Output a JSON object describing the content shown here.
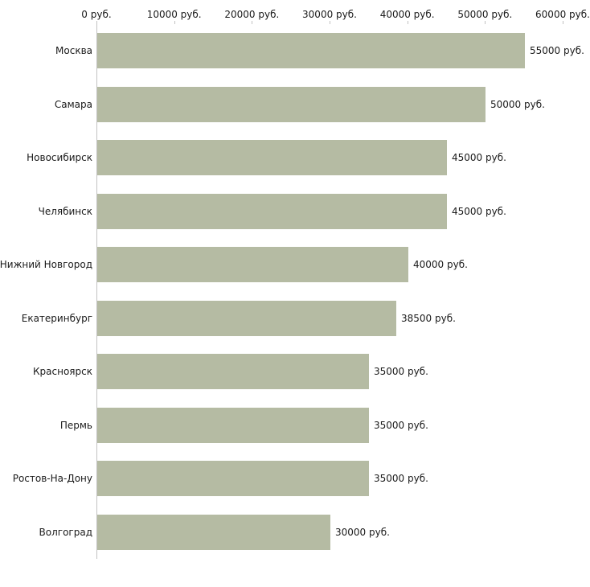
{
  "chart_data": {
    "type": "bar",
    "orientation": "horizontal",
    "title": "",
    "xlabel": "",
    "ylabel": "",
    "grid": false,
    "legend": false,
    "xlim": [
      0,
      60000
    ],
    "bar_color": "#b5bba3",
    "axis_color": "#c2c2c2",
    "text_color": "#1a1a1a",
    "categories": [
      "Москва",
      "Самара",
      "Новосибирск",
      "Челябинск",
      "Нижний Новгород",
      "Екатеринбург",
      "Красноярск",
      "Пермь",
      "Ростов-На-Дону",
      "Волгоград"
    ],
    "values": [
      55000,
      50000,
      45000,
      45000,
      40000,
      38500,
      35000,
      35000,
      35000,
      30000
    ],
    "value_labels": [
      "55000 руб.",
      "50000 руб.",
      "45000 руб.",
      "45000 руб.",
      "40000 руб.",
      "38500 руб.",
      "35000 руб.",
      "35000 руб.",
      "35000 руб.",
      "30000 руб."
    ],
    "x_ticks": [
      {
        "value": 0,
        "label": "0 руб."
      },
      {
        "value": 10000,
        "label": "10000 руб."
      },
      {
        "value": 20000,
        "label": "20000 руб."
      },
      {
        "value": 30000,
        "label": "30000 руб."
      },
      {
        "value": 40000,
        "label": "40000 руб."
      },
      {
        "value": 50000,
        "label": "50000 руб."
      },
      {
        "value": 60000,
        "label": "60000 руб."
      }
    ]
  }
}
